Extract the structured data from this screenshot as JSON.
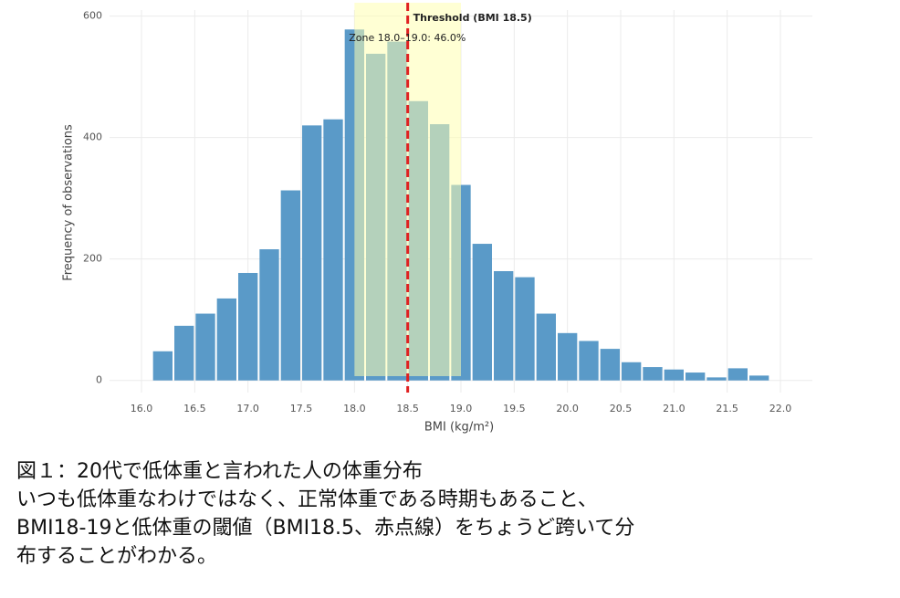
{
  "chart_data": {
    "type": "histogram",
    "bins": [
      16.1,
      16.3,
      16.5,
      16.7,
      16.9,
      17.1,
      17.3,
      17.5,
      17.7,
      17.9,
      18.1,
      18.3,
      18.5,
      18.7,
      18.9,
      19.1,
      19.3,
      19.5,
      19.7,
      19.9,
      20.1,
      20.3,
      20.5,
      20.7,
      20.9,
      21.1,
      21.3,
      21.5,
      21.7,
      21.9
    ],
    "values": [
      48,
      90,
      110,
      135,
      177,
      216,
      313,
      420,
      430,
      578,
      538,
      558,
      460,
      422,
      322,
      225,
      180,
      170,
      110,
      78,
      65,
      52,
      30,
      22,
      18,
      13,
      5,
      20,
      8
    ],
    "color": "#5a9ac8",
    "x_label": "BMI (kg/m²)",
    "y_label": "Frequency of observations",
    "xlim": [
      15.7,
      22.3
    ],
    "ylim": [
      -20,
      610
    ],
    "xticks": [
      {
        "value": 16,
        "label": "16.0"
      },
      16.5,
      {
        "value": 17,
        "label": "17.0"
      },
      17.5,
      {
        "value": 18,
        "label": "18.0"
      },
      18.5,
      {
        "value": 19,
        "label": "19.0"
      },
      19.5,
      {
        "value": 20,
        "label": "20.0"
      },
      20.5,
      {
        "value": 21,
        "label": "21.0"
      },
      21.5,
      {
        "value": 22,
        "label": "22.0"
      }
    ],
    "yticks": [
      0,
      200,
      400,
      600
    ],
    "grid": true,
    "threshold": 18.5,
    "threshold_label": "Threshold (BMI 18.5)",
    "threshold_color": "#e02020",
    "zone": [
      18,
      19
    ],
    "zone_label": "Zone 18.0–19.0: 46.0%",
    "zone_color": "#ffffb0"
  },
  "caption": {
    "lines": [
      "図１：20代で低体重と言われた人の体重分布",
      "いつも低体重なわけではなく、正常体重である時期もあること、",
      "BMI18-19と低体重の閾値（BMI18.5、赤点線）をちょうど跨いて分",
      "布することがわかる。"
    ]
  }
}
